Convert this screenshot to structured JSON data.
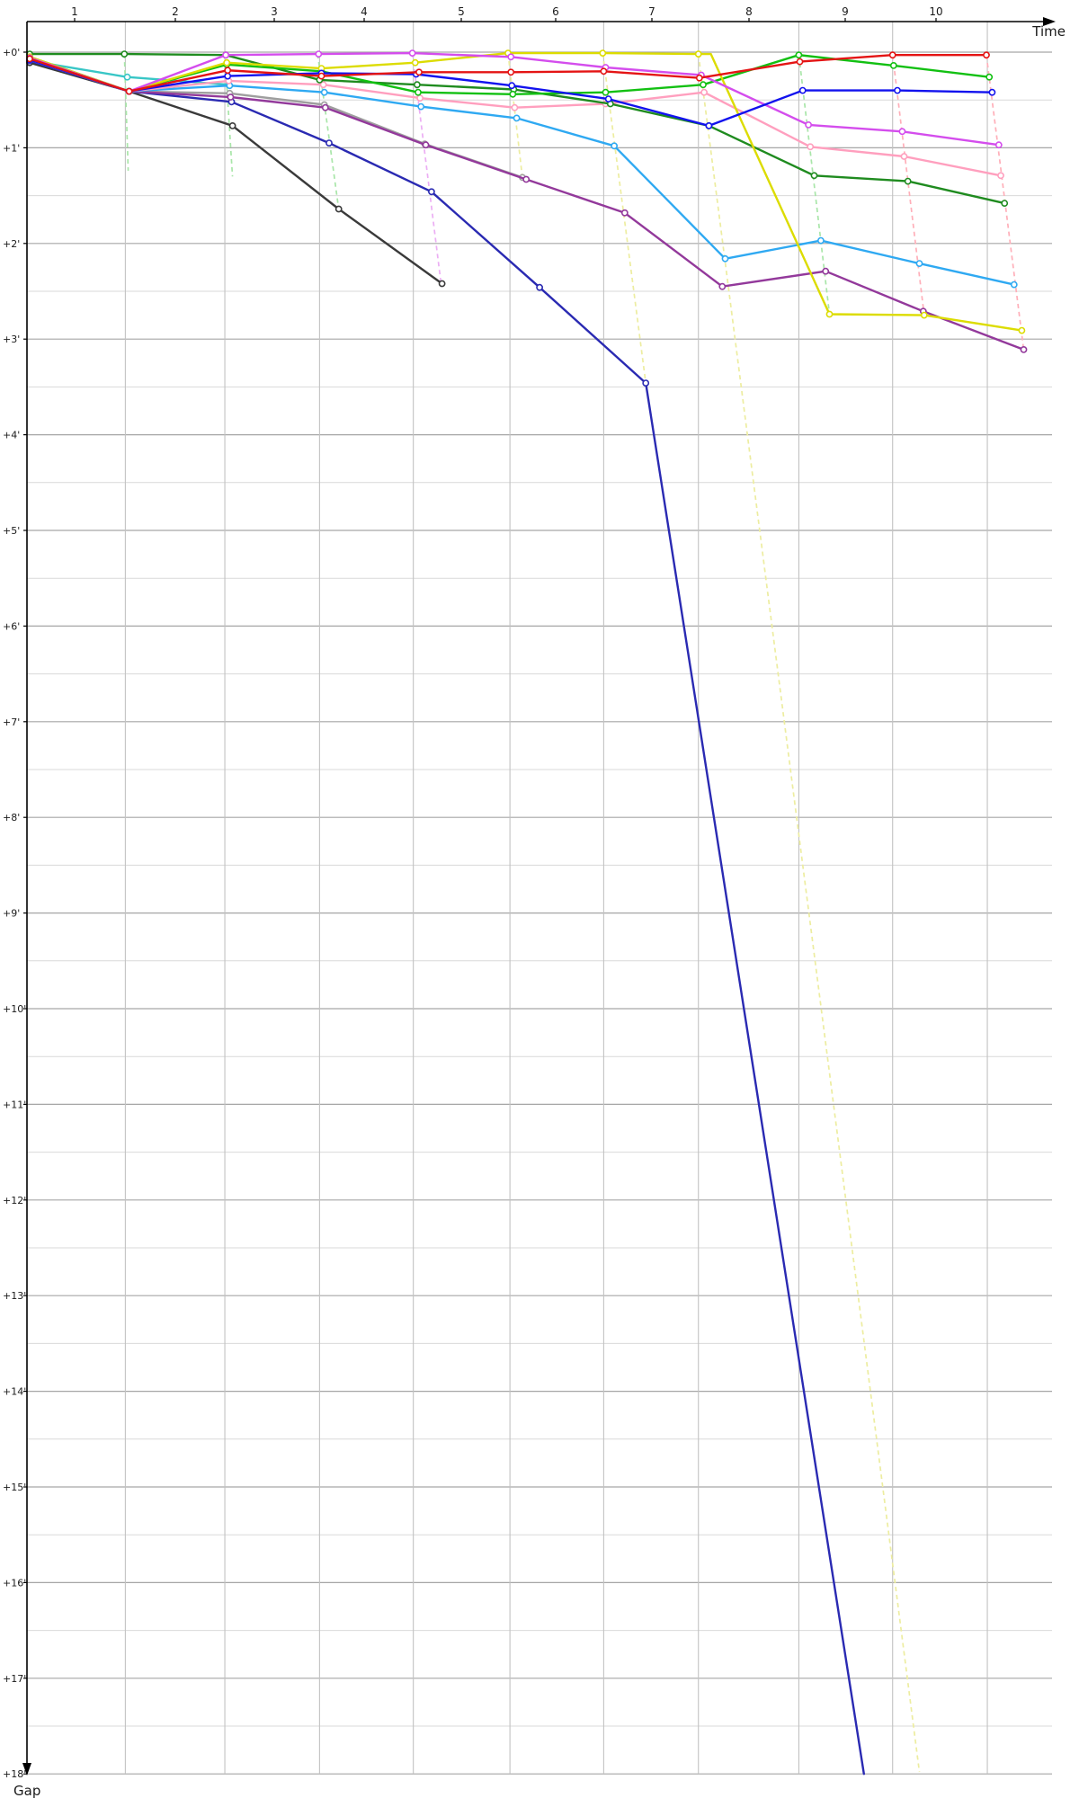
{
  "chart_data": {
    "type": "line",
    "title": "",
    "xlabel": "Time",
    "ylabel": "Gap",
    "x_ticks": [
      "1",
      "2",
      "3",
      "4",
      "5",
      "6",
      "7",
      "8",
      "9",
      "10"
    ],
    "y_ticks": [
      "+0'",
      "+1'",
      "+2'",
      "+3'",
      "+4'",
      "+5'",
      "+6'",
      "+7'",
      "+8'",
      "+9'",
      "+10'",
      "+11'",
      "+12'",
      "+13'",
      "+14'",
      "+15'",
      "+16'",
      "+17'",
      "+18'"
    ],
    "x_axis_range": [
      0.5,
      11.0
    ],
    "y_axis_range_minutes": [
      0,
      18
    ],
    "grid": "on",
    "legend_position": "none",
    "half_minute_gridlines": true,
    "lap_columns_t": [
      1.53,
      2.57,
      3.56,
      4.54,
      5.55,
      6.53,
      7.52,
      8.57,
      9.55,
      10.54
    ],
    "series": [
      {
        "name": "dark-green",
        "color": "#1f8b1f",
        "points": [
          [
            0.53,
            0.02
          ],
          [
            1.52,
            0.02
          ],
          [
            2.58,
            0.03
          ],
          [
            3.56,
            0.29
          ],
          [
            4.58,
            0.34
          ],
          [
            5.59,
            0.39
          ],
          [
            6.6,
            0.54
          ],
          [
            7.63,
            0.77
          ],
          [
            8.73,
            1.29
          ],
          [
            9.71,
            1.35
          ],
          [
            10.72,
            1.58
          ]
        ]
      },
      {
        "name": "bright-green",
        "color": "#12c012",
        "points": [
          [
            0.53,
            0.05
          ],
          [
            1.57,
            0.41
          ],
          [
            2.59,
            0.13
          ],
          [
            3.58,
            0.2
          ],
          [
            4.59,
            0.42
          ],
          [
            5.58,
            0.44
          ],
          [
            6.55,
            0.42
          ],
          [
            7.57,
            0.34
          ],
          [
            8.57,
            0.03
          ],
          [
            9.56,
            0.14
          ],
          [
            10.56,
            0.26
          ]
        ]
      },
      {
        "name": "red",
        "color": "#e41414",
        "points": [
          [
            0.53,
            0.07
          ],
          [
            1.57,
            0.41
          ],
          [
            2.6,
            0.19
          ],
          [
            3.58,
            0.25
          ],
          [
            4.6,
            0.21
          ],
          [
            5.56,
            0.21
          ],
          [
            6.53,
            0.2
          ],
          [
            7.53,
            0.27
          ],
          [
            8.58,
            0.1
          ],
          [
            9.55,
            0.03
          ],
          [
            10.53,
            0.03
          ]
        ]
      },
      {
        "name": "blue",
        "color": "#1212ee",
        "points": [
          [
            0.53,
            0.08
          ],
          [
            1.57,
            0.41
          ],
          [
            2.6,
            0.25
          ],
          [
            3.58,
            0.22
          ],
          [
            4.57,
            0.23
          ],
          [
            5.57,
            0.35
          ],
          [
            6.58,
            0.49
          ],
          [
            7.63,
            0.77
          ],
          [
            8.61,
            0.4
          ],
          [
            9.6,
            0.4
          ],
          [
            10.59,
            0.42
          ]
        ]
      },
      {
        "name": "magenta",
        "color": "#d44ded",
        "points": [
          [
            0.53,
            0.06
          ],
          [
            1.57,
            0.41
          ],
          [
            2.58,
            0.03
          ],
          [
            3.55,
            0.02
          ],
          [
            4.53,
            0.01
          ],
          [
            5.56,
            0.05
          ],
          [
            6.55,
            0.16
          ],
          [
            7.55,
            0.24
          ],
          [
            8.67,
            0.76
          ],
          [
            9.65,
            0.83
          ],
          [
            10.66,
            0.97
          ]
        ]
      },
      {
        "name": "yellow",
        "color": "#dcdc00",
        "no_markers": [
          8
        ],
        "points": [
          [
            0.53,
            0.05
          ],
          [
            1.57,
            0.41
          ],
          [
            2.59,
            0.11
          ],
          [
            3.58,
            0.17
          ],
          [
            4.56,
            0.11
          ],
          [
            5.53,
            0.01
          ],
          [
            6.52,
            0.01
          ],
          [
            7.52,
            0.02
          ],
          [
            7.65,
            0.02
          ],
          [
            8.89,
            2.74
          ],
          [
            9.88,
            2.75
          ],
          [
            10.9,
            2.91
          ]
        ]
      },
      {
        "name": "pink",
        "color": "#ff9fbe",
        "points": [
          [
            0.53,
            0.08
          ],
          [
            1.57,
            0.41
          ],
          [
            2.61,
            0.3
          ],
          [
            3.6,
            0.34
          ],
          [
            4.61,
            0.48
          ],
          [
            5.6,
            0.58
          ],
          [
            6.55,
            0.54
          ],
          [
            7.58,
            0.42
          ],
          [
            8.69,
            0.99
          ],
          [
            9.67,
            1.09
          ],
          [
            10.68,
            1.29
          ]
        ]
      },
      {
        "name": "sky-blue",
        "color": "#2fa9f2",
        "points": [
          [
            0.53,
            0.08
          ],
          [
            1.57,
            0.41
          ],
          [
            2.62,
            0.35
          ],
          [
            3.61,
            0.42
          ],
          [
            4.62,
            0.57
          ],
          [
            5.62,
            0.69
          ],
          [
            6.64,
            0.98
          ],
          [
            7.8,
            2.16
          ],
          [
            8.8,
            1.97
          ],
          [
            9.83,
            2.21
          ],
          [
            10.82,
            2.43
          ]
        ]
      },
      {
        "name": "cyan",
        "color": "#38c6c6",
        "points": [
          [
            0.53,
            0.09
          ],
          [
            1.55,
            0.26
          ],
          [
            2.61,
            0.34
          ]
        ]
      },
      {
        "name": "gray",
        "color": "#9e9e9e",
        "points": [
          [
            0.53,
            0.08
          ],
          [
            1.57,
            0.41
          ],
          [
            2.62,
            0.43
          ],
          [
            3.61,
            0.55
          ],
          [
            4.66,
            0.96
          ],
          [
            5.68,
            1.31
          ]
        ]
      },
      {
        "name": "purple",
        "color": "#93399b",
        "points": [
          [
            0.53,
            0.08
          ],
          [
            1.57,
            0.41
          ],
          [
            2.63,
            0.47
          ],
          [
            3.62,
            0.58
          ],
          [
            4.67,
            0.97
          ],
          [
            5.72,
            1.33
          ],
          [
            6.75,
            1.68
          ],
          [
            7.77,
            2.45
          ],
          [
            8.85,
            2.29
          ],
          [
            9.87,
            2.71
          ],
          [
            10.92,
            3.11
          ]
        ]
      },
      {
        "name": "navy",
        "color": "#2a2ab2",
        "no_markers": [
          7
        ],
        "points": [
          [
            0.53,
            0.09
          ],
          [
            1.57,
            0.41
          ],
          [
            2.64,
            0.52
          ],
          [
            3.66,
            0.95
          ],
          [
            4.73,
            1.46
          ],
          [
            5.86,
            2.46
          ],
          [
            6.97,
            3.46
          ],
          [
            9.25,
            18.0
          ]
        ]
      },
      {
        "name": "black",
        "color": "#3a3a3a",
        "points": [
          [
            0.53,
            0.11
          ],
          [
            1.57,
            0.41
          ],
          [
            2.65,
            0.77
          ],
          [
            3.76,
            1.64
          ],
          [
            4.84,
            2.42
          ]
        ]
      }
    ],
    "leader_drop_lines": [
      {
        "name": "lap1-green",
        "color": "#a9e6a9",
        "from": [
          1.52,
          0.02
        ],
        "to": [
          1.56,
          1.24
        ]
      },
      {
        "name": "lap2-green",
        "color": "#a9e6a9",
        "from": [
          2.57,
          0.02
        ],
        "to": [
          2.65,
          1.3
        ]
      },
      {
        "name": "lap3-green",
        "color": "#a9e6a9",
        "from": [
          3.54,
          0.02
        ],
        "to": [
          3.76,
          1.64
        ]
      },
      {
        "name": "lap4-violet",
        "color": "#ecaef4",
        "from": [
          4.53,
          0.01
        ],
        "to": [
          4.83,
          2.42
        ]
      },
      {
        "name": "lap5-yellow",
        "color": "#ededa0",
        "from": [
          5.53,
          0.01
        ],
        "to": [
          5.68,
          1.31
        ]
      },
      {
        "name": "lap6-yellow",
        "color": "#ededa0",
        "from": [
          6.52,
          0.01
        ],
        "to": [
          6.97,
          3.46
        ]
      },
      {
        "name": "lap7-yellow",
        "color": "#ededa0",
        "from": [
          7.52,
          0.02
        ],
        "to": [
          9.83,
          17.98
        ]
      },
      {
        "name": "lap8-green",
        "color": "#a9e6a9",
        "from": [
          8.57,
          0.03
        ],
        "to": [
          8.89,
          2.74
        ]
      },
      {
        "name": "lap9-pink",
        "color": "#ffafb9",
        "from": [
          9.55,
          0.03
        ],
        "to": [
          9.88,
          2.75
        ]
      },
      {
        "name": "lap10-pink",
        "color": "#ffafb9",
        "from": [
          10.53,
          0.03
        ],
        "to": [
          10.92,
          3.11
        ]
      }
    ],
    "colors": {
      "axis": "#000000",
      "grid_minute": "#a6a6a6",
      "grid_half_minute": "#d9d9d9",
      "grid_vertical": "#c2c2c2",
      "marker_fill": "#ffffff"
    }
  }
}
